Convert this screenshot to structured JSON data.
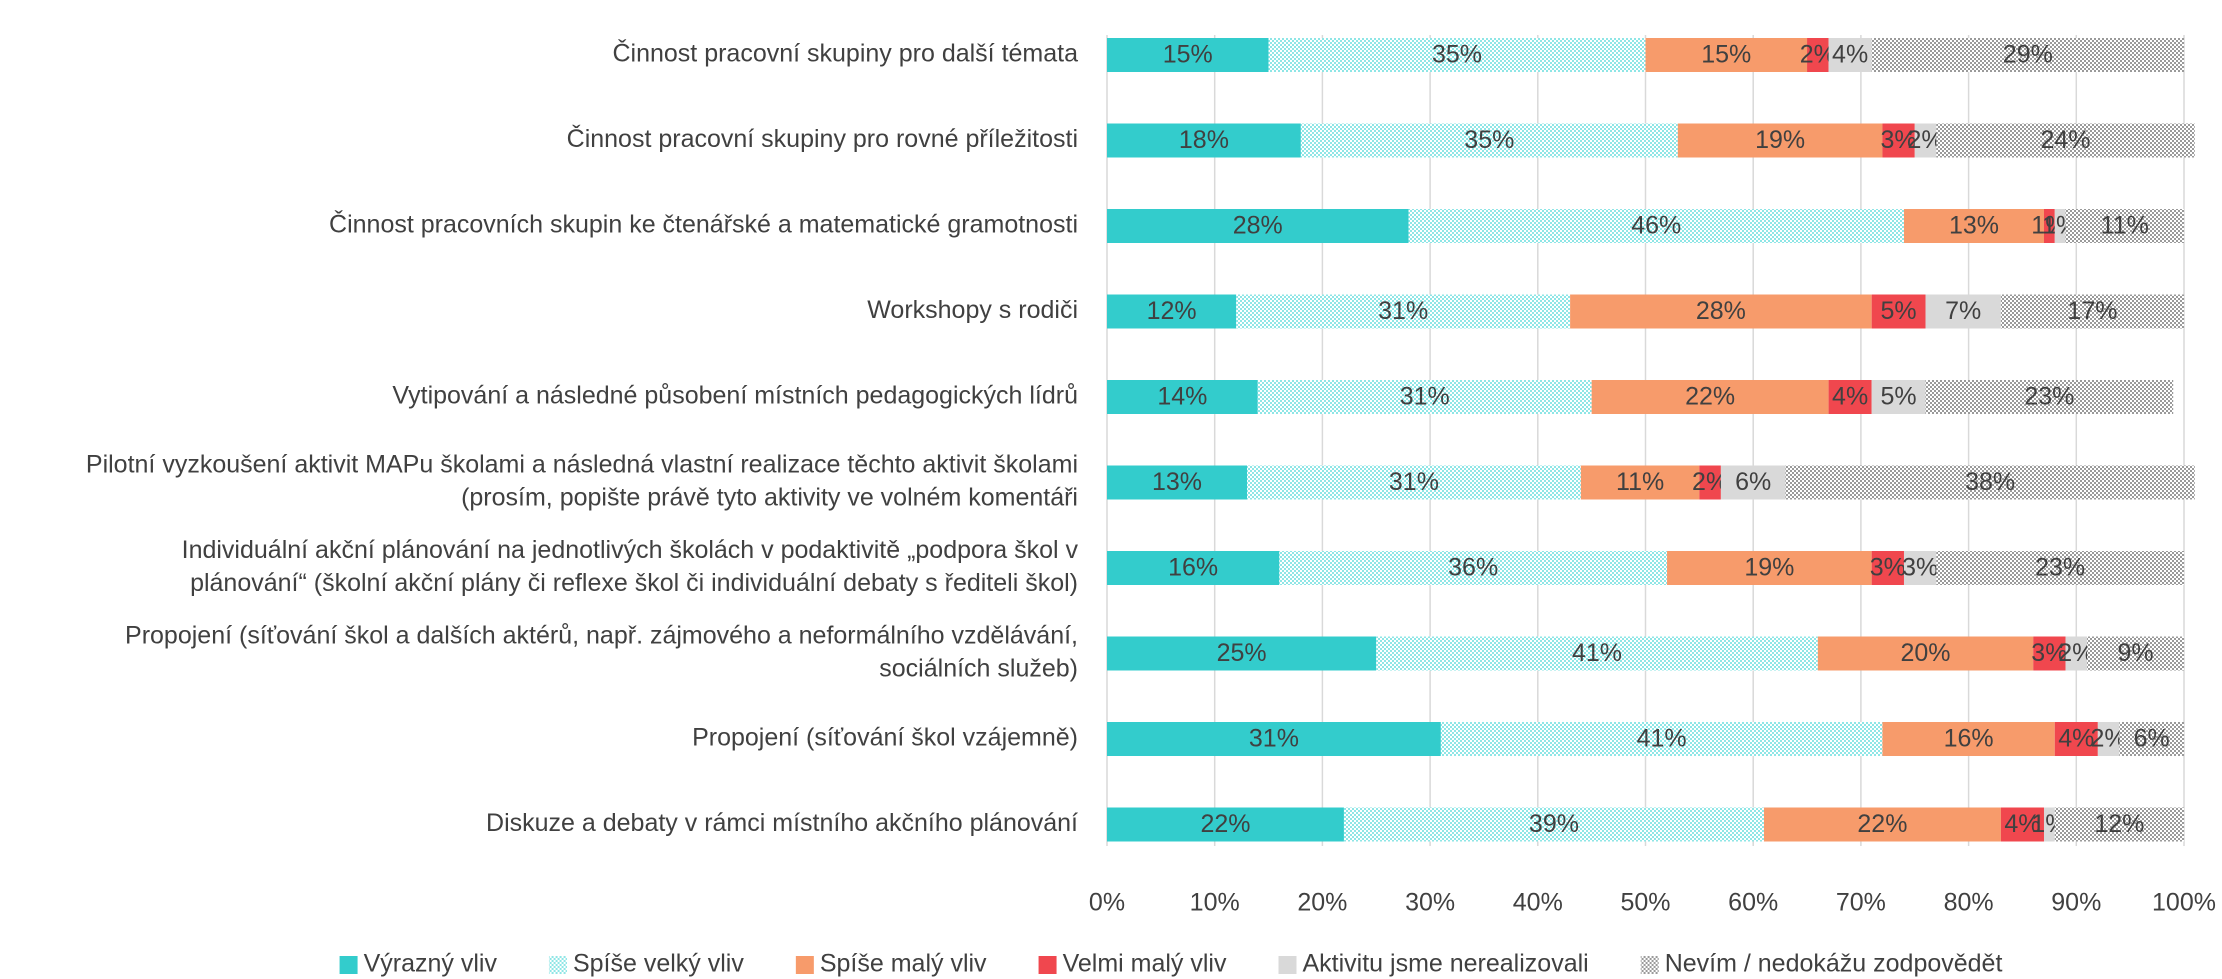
{
  "chart_data": {
    "type": "stacked-bar-horizontal",
    "categories": [
      [
        "Činnost pracovní skupiny pro další témata"
      ],
      [
        "Činnost pracovní skupiny pro rovné příležitosti"
      ],
      [
        "Činnost pracovních skupin ke čtenářské a matematické gramotnosti"
      ],
      [
        "Workshopy s rodiči"
      ],
      [
        "Vytipování a následné působení místních pedagogických lídrů"
      ],
      [
        "Pilotní vyzkoušení aktivit MAPu školami a následná vlastní realizace těchto aktivit školami",
        "(prosím, popište právě tyto aktivity ve volném komentáři"
      ],
      [
        "Individuální akční plánování na jednotlivých školách v podaktivitě „podpora škol v",
        "plánování“ (školní akční plány či reflexe škol či individuální debaty s řediteli škol)"
      ],
      [
        "Propojení (síťování škol a dalších aktérů, např. zájmového a neformálního vzdělávání,",
        "sociálních služeb)"
      ],
      [
        "Propojení (síťování škol vzájemně)"
      ],
      [
        "Diskuze a debaty v rámci místního akčního plánování"
      ]
    ],
    "series": [
      {
        "name": "Výrazný vliv",
        "color": "#33cccc",
        "values": [
          15,
          18,
          28,
          12,
          14,
          13,
          16,
          25,
          31,
          22
        ],
        "value_labels": [
          "15%",
          "18%",
          "28%",
          "12%",
          "14%",
          "13%",
          "16%",
          "25%",
          "31%",
          "22%"
        ]
      },
      {
        "name": "Spíše velký vliv",
        "color": "#8ee6e6",
        "pattern": "dots",
        "values": [
          35,
          35,
          46,
          31,
          31,
          31,
          36,
          41,
          41,
          39
        ],
        "value_labels": [
          "35%",
          "35%",
          "46%",
          "31%",
          "31%",
          "31%",
          "36%",
          "41%",
          "41%",
          "39%"
        ]
      },
      {
        "name": "Spíše malý vliv",
        "color": "#f79b6b",
        "values": [
          15,
          19,
          13,
          28,
          22,
          11,
          19,
          20,
          16,
          22
        ],
        "value_labels": [
          "15%",
          "19%",
          "13%",
          "28%",
          "22%",
          "11%",
          "19%",
          "20%",
          "16%",
          "22%"
        ]
      },
      {
        "name": "Velmi malý vliv",
        "color": "#f0474e",
        "values": [
          2,
          3,
          1,
          5,
          4,
          2,
          3,
          3,
          4,
          4
        ],
        "value_labels": [
          "2%",
          "3%",
          "1%",
          "5%",
          "4%",
          "2%",
          "3%",
          "3%",
          "4%",
          "4%"
        ]
      },
      {
        "name": "Aktivitu jsme nerealizovali",
        "color": "#d9d9d9",
        "values": [
          4,
          2,
          1,
          7,
          5,
          6,
          3,
          2,
          2,
          1
        ],
        "value_labels": [
          "4%",
          "2%",
          "1%",
          "7%",
          "5%",
          "6%",
          "3%",
          "2%",
          "2%",
          "1%"
        ]
      },
      {
        "name": "Nevím / nedokážu zodpovědět",
        "color": "#9a9a9a",
        "pattern": "dots",
        "values": [
          29,
          24,
          11,
          17,
          23,
          38,
          23,
          9,
          6,
          12
        ],
        "value_labels": [
          "29%",
          "24%",
          "11%",
          "17%",
          "23%",
          "38%",
          "23%",
          "9%",
          "6%",
          "12%"
        ]
      }
    ],
    "xlim": [
      0,
      100
    ],
    "xticks": [
      {
        "value": 0,
        "label": "0%"
      },
      {
        "value": 10,
        "label": "10%"
      },
      {
        "value": 20,
        "label": "20%"
      },
      {
        "value": 30,
        "label": "30%"
      },
      {
        "value": 40,
        "label": "40%"
      },
      {
        "value": 50,
        "label": "50%"
      },
      {
        "value": 60,
        "label": "60%"
      },
      {
        "value": 70,
        "label": "70%"
      },
      {
        "value": 80,
        "label": "80%"
      },
      {
        "value": 90,
        "label": "90%"
      },
      {
        "value": 100,
        "label": "100%"
      }
    ],
    "grid": true,
    "legend": "bottom"
  }
}
